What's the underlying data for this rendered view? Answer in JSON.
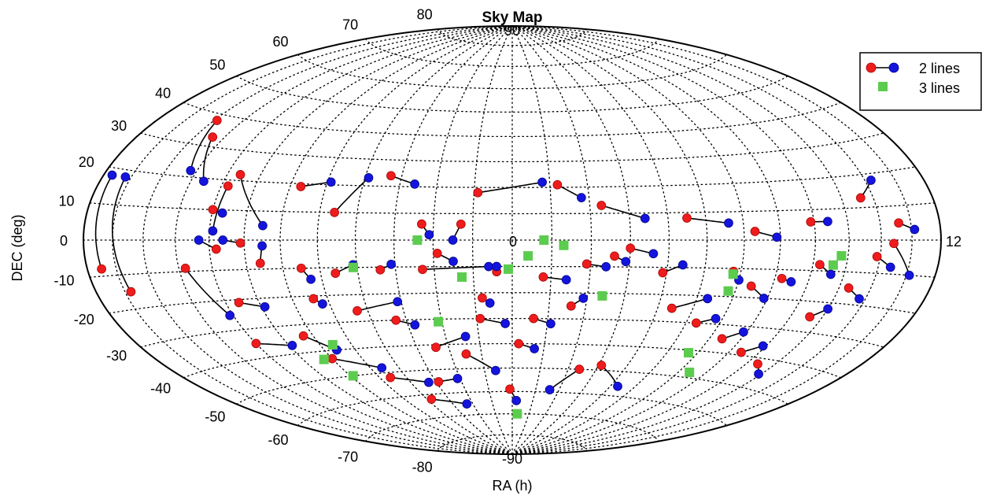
{
  "chart_data": {
    "type": "scatter",
    "projection": "hammer-aitoff",
    "title": "Sky Map",
    "xlabel": "RA (h)",
    "ylabel": "DEC (deg)",
    "grid": true,
    "legend_position": "top-right",
    "dec_labels": [
      "90",
      "80",
      "70",
      "60",
      "50",
      "40",
      "30",
      "20",
      "10",
      "0",
      "-10",
      "-20",
      "-30",
      "-40",
      "-50",
      "-60",
      "-70",
      "-80",
      "-90"
    ],
    "ra_labels": [
      "0",
      "12"
    ],
    "colors": {
      "red": "#ee1c1c",
      "blue": "#1414dd",
      "green": "#5ccc4e",
      "line": "#000000",
      "grid": "#000000"
    },
    "series": [
      {
        "name": "2 lines",
        "type": "pairs",
        "pairs": [
          [
            [
              -10.8,
              -15
            ],
            [
              -11.2,
              18
            ]
          ],
          [
            [
              -11.5,
              -8
            ],
            [
              -11.7,
              18
            ]
          ],
          [
            [
              -9.9,
              38
            ],
            [
              -9.2,
              22
            ]
          ],
          [
            [
              -9.4,
              33
            ],
            [
              -8.6,
              19
            ]
          ],
          [
            [
              -7.6,
              22
            ],
            [
              -6.5,
              5
            ]
          ],
          [
            [
              -7.8,
              18
            ],
            [
              -7.9,
              3
            ]
          ],
          [
            [
              -8.0,
              10
            ],
            [
              -7.7,
              9
            ]
          ],
          [
            [
              -5.7,
              19
            ],
            [
              -4.9,
              21
            ]
          ],
          [
            [
              -4.6,
              10
            ],
            [
              -3.9,
              23
            ]
          ],
          [
            [
              -3.3,
              24
            ],
            [
              -2.6,
              21
            ]
          ],
          [
            [
              -2.3,
              6
            ],
            [
              -2.1,
              2
            ]
          ],
          [
            [
              -1.3,
              6
            ],
            [
              -1.5,
              0
            ]
          ],
          [
            [
              -7.8,
              -3
            ],
            [
              -8.3,
              0
            ]
          ],
          [
            [
              -7.1,
              -1
            ],
            [
              -7.6,
              0
            ]
          ],
          [
            [
              -6.6,
              -8
            ],
            [
              -6.5,
              -2
            ]
          ],
          [
            [
              -8.8,
              -9
            ],
            [
              -8.1,
              -25
            ]
          ],
          [
            [
              -7.6,
              -21
            ],
            [
              -6.9,
              -23
            ]
          ],
          [
            [
              -5.5,
              -10
            ],
            [
              -5.3,
              -14
            ]
          ],
          [
            [
              -4.6,
              -12
            ],
            [
              -4.1,
              -9
            ]
          ],
          [
            [
              -3.4,
              -11
            ],
            [
              -3.1,
              -9
            ]
          ],
          [
            [
              -2.3,
              -11
            ],
            [
              -0.6,
              -10
            ]
          ],
          [
            [
              -1.9,
              -5
            ],
            [
              -1.5,
              -8
            ]
          ],
          [
            [
              -0.4,
              -12
            ],
            [
              -0.4,
              -10
            ]
          ],
          [
            [
              -8.0,
              -35
            ],
            [
              -6.9,
              -37
            ]
          ],
          [
            [
              -6.3,
              -34
            ],
            [
              -5.6,
              -40
            ]
          ],
          [
            [
              -5.4,
              -21
            ],
            [
              -5.2,
              -23
            ]
          ],
          [
            [
              -4.3,
              -26
            ],
            [
              -3.1,
              -23
            ]
          ],
          [
            [
              -3.3,
              -30
            ],
            [
              -2.8,
              -32
            ]
          ],
          [
            [
              -2.4,
              -41
            ],
            [
              -1.4,
              -37
            ]
          ],
          [
            [
              -0.8,
              -22
            ],
            [
              -0.6,
              -24
            ]
          ],
          [
            [
              -0.9,
              -30
            ],
            [
              -0.2,
              -32
            ]
          ],
          [
            [
              -6.0,
              -43
            ],
            [
              -4.6,
              -48
            ]
          ],
          [
            [
              -4.6,
              -52
            ],
            [
              -3.3,
              -55
            ]
          ],
          [
            [
              -2.9,
              -55
            ],
            [
              -2.1,
              -54
            ]
          ],
          [
            [
              -1.5,
              -44
            ],
            [
              -0.6,
              -51
            ]
          ],
          [
            [
              0.2,
              -40
            ],
            [
              0.7,
              -42
            ]
          ],
          [
            [
              0.6,
              -30
            ],
            [
              1.1,
              -32
            ]
          ],
          [
            [
              1.6,
              -25
            ],
            [
              1.9,
              -22
            ]
          ],
          [
            [
              0.8,
              -14
            ],
            [
              1.4,
              -15
            ]
          ],
          [
            [
              1.9,
              -9
            ],
            [
              2.4,
              -10
            ]
          ],
          [
            [
              2.6,
              -6
            ],
            [
              2.9,
              -8
            ]
          ],
          [
            [
              3.0,
              -3
            ],
            [
              3.6,
              -5
            ]
          ],
          [
            [
              3.9,
              -12
            ],
            [
              4.4,
              -9
            ]
          ],
          [
            [
              4.4,
              -25
            ],
            [
              5.3,
              -21
            ]
          ],
          [
            [
              5.3,
              -30
            ],
            [
              5.8,
              -28
            ]
          ],
          [
            [
              6.4,
              -35
            ],
            [
              6.9,
              -32
            ]
          ],
          [
            [
              7.4,
              -39
            ],
            [
              7.9,
              -36
            ]
          ],
          [
            [
              8.4,
              -42
            ],
            [
              8.9,
              -45
            ]
          ],
          [
            [
              8.6,
              -25
            ],
            [
              9.0,
              -22
            ]
          ],
          [
            [
              9.3,
              -15
            ],
            [
              9.8,
              -18
            ]
          ],
          [
            [
              9.9,
              -5
            ],
            [
              10.4,
              -8
            ]
          ],
          [
            [
              10.6,
              5
            ],
            [
              11.1,
              3
            ]
          ],
          [
            [
              10.4,
              -1
            ],
            [
              11.1,
              -10
            ]
          ],
          [
            [
              -0.9,
              18
            ],
            [
              0.8,
              22
            ]
          ],
          [
            [
              1.2,
              21
            ],
            [
              1.8,
              16
            ]
          ],
          [
            [
              2.3,
              13
            ],
            [
              3.4,
              8
            ]
          ],
          [
            [
              4.5,
              8
            ],
            [
              5.6,
              6
            ]
          ],
          [
            [
              6.3,
              3
            ],
            [
              6.9,
              1
            ]
          ],
          [
            [
              7.9,
              6
            ],
            [
              8.4,
              6
            ]
          ],
          [
            [
              9.6,
              13
            ],
            [
              10.2,
              18
            ]
          ],
          [
            [
              8.2,
              -8
            ],
            [
              8.6,
              -11
            ]
          ],
          [
            [
              7.2,
              -13
            ],
            [
              7.5,
              -14
            ]
          ],
          [
            [
              6.4,
              -16
            ],
            [
              6.9,
              -20
            ]
          ],
          [
            [
              5.8,
              -11
            ],
            [
              6.0,
              -14
            ]
          ],
          [
            [
              3.1,
              -48
            ],
            [
              4.3,
              -56
            ]
          ],
          [
            [
              2.4,
              -50
            ],
            [
              1.6,
              -59
            ]
          ],
          [
            [
              -0.1,
              -59
            ],
            [
              0.2,
              -64
            ]
          ],
          [
            [
              -3.8,
              -62
            ],
            [
              -2.3,
              -65
            ]
          ]
        ]
      },
      {
        "name": "3 lines",
        "type": "points",
        "points": [
          [
            -4.1,
            -10
          ],
          [
            -2.4,
            0
          ],
          [
            -1.3,
            -14
          ],
          [
            -0.1,
            -11
          ],
          [
            0.4,
            -6
          ],
          [
            0.8,
            0
          ],
          [
            1.3,
            -2
          ],
          [
            2.4,
            -21
          ],
          [
            -2.1,
            -31
          ],
          [
            -6.3,
            -43
          ],
          [
            -5.6,
            -38
          ],
          [
            -5.9,
            -50
          ],
          [
            5.8,
            -18
          ],
          [
            5.8,
            -12
          ],
          [
            5.7,
            -41
          ],
          [
            6.4,
            -48
          ],
          [
            8.8,
            -5
          ],
          [
            8.6,
            -8
          ],
          [
            0.3,
            -70
          ]
        ]
      }
    ]
  }
}
